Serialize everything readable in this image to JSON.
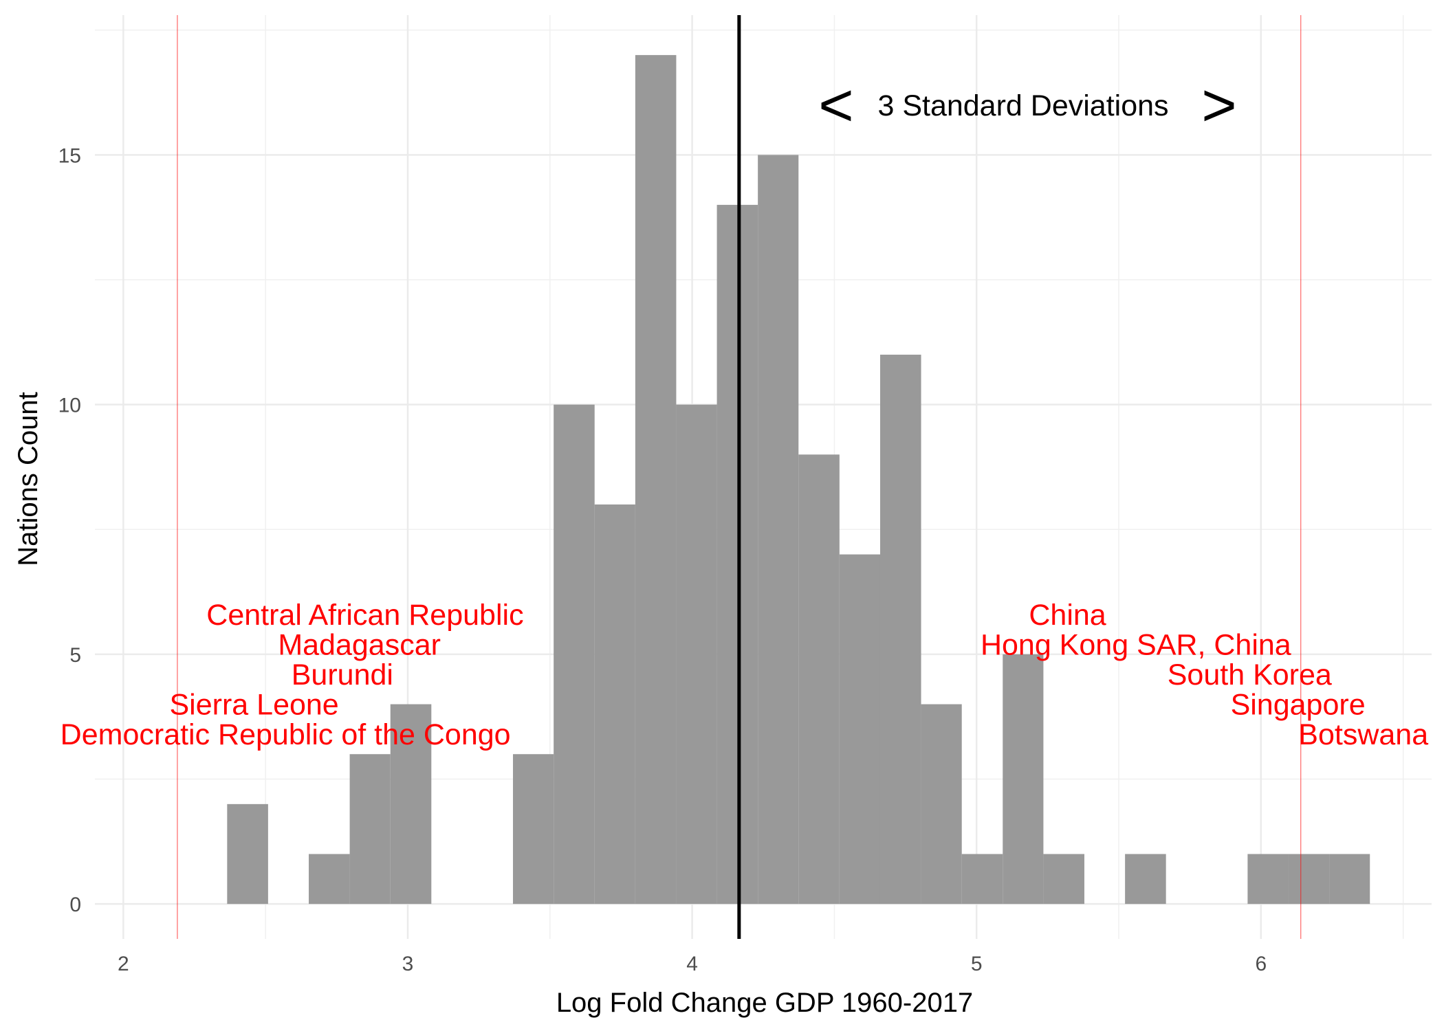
{
  "chart_data": {
    "type": "bar",
    "subtype": "histogram",
    "xlabel": "Log Fold Change GDP 1960-2017",
    "ylabel": "Nations Count",
    "xlim": [
      1.9,
      6.6
    ],
    "ylim": [
      -0.7,
      17.8
    ],
    "x_ticks": [
      2,
      3,
      4,
      5,
      6
    ],
    "x_tick_labels": [
      "2",
      "3",
      "4",
      "5",
      "6"
    ],
    "y_ticks": [
      0,
      5,
      10,
      15
    ],
    "y_tick_labels": [
      "0",
      "5",
      "10",
      "15"
    ],
    "grid": true,
    "bin_width": 0.1435,
    "bins": [
      {
        "x0": 2.365,
        "x1": 2.509,
        "count": 2
      },
      {
        "x0": 2.652,
        "x1": 2.796,
        "count": 1
      },
      {
        "x0": 2.796,
        "x1": 2.939,
        "count": 3
      },
      {
        "x0": 2.939,
        "x1": 3.083,
        "count": 4
      },
      {
        "x0": 3.37,
        "x1": 3.513,
        "count": 3
      },
      {
        "x0": 3.513,
        "x1": 3.657,
        "count": 10
      },
      {
        "x0": 3.657,
        "x1": 3.8,
        "count": 8
      },
      {
        "x0": 3.8,
        "x1": 3.944,
        "count": 17
      },
      {
        "x0": 3.944,
        "x1": 4.087,
        "count": 10
      },
      {
        "x0": 4.087,
        "x1": 4.231,
        "count": 14
      },
      {
        "x0": 4.231,
        "x1": 4.374,
        "count": 15
      },
      {
        "x0": 4.374,
        "x1": 4.518,
        "count": 9
      },
      {
        "x0": 4.518,
        "x1": 4.661,
        "count": 7
      },
      {
        "x0": 4.661,
        "x1": 4.805,
        "count": 11
      },
      {
        "x0": 4.805,
        "x1": 4.948,
        "count": 4
      },
      {
        "x0": 4.948,
        "x1": 5.092,
        "count": 1
      },
      {
        "x0": 5.092,
        "x1": 5.235,
        "count": 5
      },
      {
        "x0": 5.235,
        "x1": 5.379,
        "count": 1
      },
      {
        "x0": 5.522,
        "x1": 5.666,
        "count": 1
      },
      {
        "x0": 5.953,
        "x1": 6.096,
        "count": 1
      },
      {
        "x0": 6.096,
        "x1": 6.24,
        "count": 1
      },
      {
        "x0": 6.24,
        "x1": 6.383,
        "count": 1
      }
    ],
    "bar_color": "#999999",
    "mean_line": {
      "x": 4.165,
      "color": "#000000"
    },
    "sd_lines": [
      {
        "x": 2.19,
        "color": "#ff0000"
      },
      {
        "x": 6.14,
        "color": "#ff0000"
      }
    ],
    "sd_annotation": {
      "left_arrow": "<",
      "label": "3 Standard Deviations",
      "right_arrow": ">",
      "y": 16.0
    },
    "annotations_low": {
      "color": "#ff0000",
      "items": [
        {
          "label": "Central African Republic",
          "x": 2.85,
          "y": 5.8
        },
        {
          "label": "Madagascar",
          "x": 2.83,
          "y": 5.2
        },
        {
          "label": "Burundi",
          "x": 2.77,
          "y": 4.6
        },
        {
          "label": "Sierra Leone",
          "x": 2.46,
          "y": 4.0
        },
        {
          "label": "Democratic Republic of the Congo",
          "x": 2.57,
          "y": 3.4
        }
      ]
    },
    "annotations_high": {
      "color": "#ff0000",
      "items": [
        {
          "label": "China",
          "x": 5.32,
          "y": 5.8
        },
        {
          "label": "Hong Kong SAR, China",
          "x": 5.56,
          "y": 5.2
        },
        {
          "label": "South Korea",
          "x": 5.96,
          "y": 4.6
        },
        {
          "label": "Singapore",
          "x": 6.13,
          "y": 4.0
        },
        {
          "label": "Botswana",
          "x": 6.36,
          "y": 3.4
        }
      ]
    }
  }
}
